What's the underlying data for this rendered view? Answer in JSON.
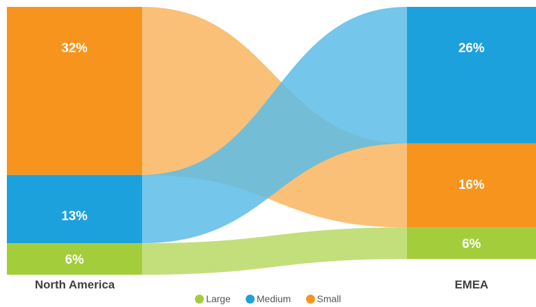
{
  "chart_data": {
    "type": "sankey",
    "title": "",
    "nodes_left": [
      {
        "id": "na-small",
        "category": "Small",
        "value": 32,
        "label": "32%"
      },
      {
        "id": "na-medium",
        "category": "Medium",
        "value": 13,
        "label": "13%"
      },
      {
        "id": "na-large",
        "category": "Large",
        "value": 6,
        "label": "6%"
      }
    ],
    "nodes_right": [
      {
        "id": "emea-medium",
        "category": "Medium",
        "value": 26,
        "label": "26%"
      },
      {
        "id": "emea-small",
        "category": "Small",
        "value": 16,
        "label": "16%"
      },
      {
        "id": "emea-large",
        "category": "Large",
        "value": 6,
        "label": "6%"
      }
    ],
    "columns": [
      "North America",
      "EMEA"
    ],
    "legend": [
      {
        "name": "Large",
        "color": "#a3cd3b"
      },
      {
        "name": "Medium",
        "color": "#1ca1dc"
      },
      {
        "name": "Small",
        "color": "#f7941e"
      }
    ],
    "colors": {
      "Large": "#a3cd3b",
      "Medium": "#1ca1dc",
      "Small": "#f7941e",
      "Large_flow": "#c3df7b",
      "Medium_flow": "#5cbce6",
      "Small_flow": "#f9b55f"
    }
  }
}
